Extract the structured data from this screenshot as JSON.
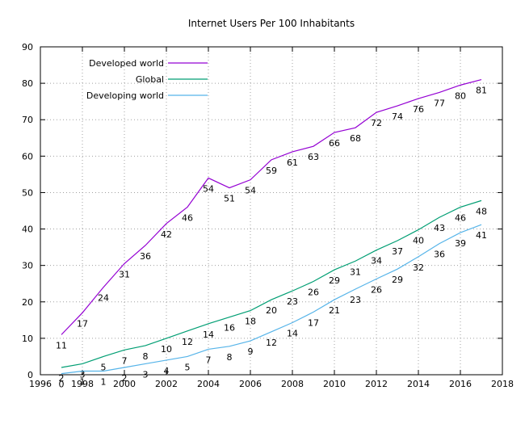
{
  "chart_data": {
    "type": "line",
    "title": "Internet Users Per 100 Inhabitants",
    "xlabel": "",
    "ylabel": "",
    "xlim": [
      1996,
      2018
    ],
    "ylim": [
      0,
      90
    ],
    "xticks": [
      1996,
      1998,
      2000,
      2002,
      2004,
      2006,
      2008,
      2010,
      2012,
      2014,
      2016,
      2018
    ],
    "yticks": [
      0,
      10,
      20,
      30,
      40,
      50,
      60,
      70,
      80,
      90
    ],
    "grid": true,
    "legend_position": "top-left",
    "x": [
      1997,
      1998,
      1999,
      2000,
      2001,
      2002,
      2003,
      2004,
      2005,
      2006,
      2007,
      2008,
      2009,
      2010,
      2011,
      2012,
      2013,
      2014,
      2015,
      2016,
      2017
    ],
    "series": [
      {
        "name": "Developed world",
        "color": "#9400d3",
        "values": [
          11,
          17,
          24,
          31,
          36,
          42,
          46,
          54,
          51,
          54,
          59,
          61,
          63,
          66,
          68,
          72,
          74,
          76,
          77,
          80,
          81
        ],
        "y": [
          11,
          17,
          24,
          30.5,
          35.5,
          41.5,
          46,
          54,
          51.3,
          53.5,
          59,
          61.2,
          62.7,
          66.5,
          67.8,
          72,
          73.8,
          75.8,
          77.5,
          79.5,
          81
        ]
      },
      {
        "name": "Global",
        "color": "#009e73",
        "values": [
          2,
          3,
          5,
          7,
          8,
          10,
          12,
          14,
          16,
          18,
          20,
          23,
          26,
          29,
          31,
          34,
          37,
          40,
          43,
          46,
          48
        ],
        "y": [
          2,
          3,
          5,
          6.8,
          8,
          10,
          12,
          14,
          15.8,
          17.6,
          20.6,
          23,
          25.6,
          28.8,
          31.2,
          34.2,
          36.8,
          39.8,
          43.2,
          46,
          47.8
        ]
      },
      {
        "name": "Developing world",
        "color": "#56b4e9",
        "values": [
          0,
          1,
          1,
          2,
          3,
          4,
          5,
          7,
          8,
          9,
          12,
          14,
          17,
          21,
          23,
          26,
          29,
          32,
          36,
          39,
          41
        ],
        "y": [
          0.3,
          1,
          1,
          2,
          3,
          4,
          5,
          7,
          7.8,
          9.3,
          11.8,
          14.3,
          17.2,
          20.6,
          23.5,
          26.3,
          29,
          32.4,
          36,
          39,
          41.2
        ]
      }
    ]
  }
}
